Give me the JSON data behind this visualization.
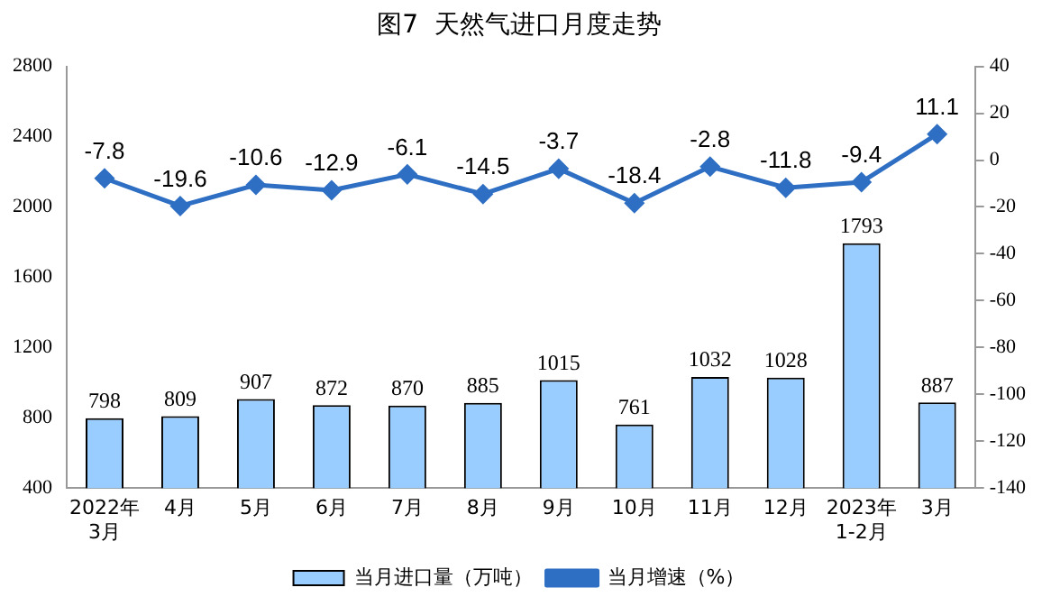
{
  "chart_data": {
    "type": "bar",
    "title": "图7  天然气进口月度走势",
    "categories": [
      "2022年\n3月",
      "4月",
      "5月",
      "6月",
      "7月",
      "8月",
      "9月",
      "10月",
      "11月",
      "12月",
      "2023年\n1-2月",
      "3月"
    ],
    "series": [
      {
        "name": "当月进口量（万吨）",
        "color": "#99ccff",
        "values": [
          798,
          809,
          907,
          872,
          870,
          885,
          1015,
          761,
          1032,
          1028,
          1793,
          887
        ]
      },
      {
        "name": "当月增速（%）",
        "type": "line",
        "axis": "y2",
        "color": "#2e6fc4",
        "marker": "diamond",
        "values": [
          -7.8,
          -19.6,
          -10.6,
          -12.9,
          -6.1,
          -14.5,
          -3.7,
          -18.4,
          -2.8,
          -11.8,
          -9.4,
          11.1
        ]
      }
    ],
    "ylim": [
      400,
      2800
    ],
    "yticks": [
      400,
      800,
      1200,
      1600,
      2000,
      2400,
      2800
    ],
    "y2lim": [
      -140,
      40
    ],
    "y2ticks": [
      -140,
      -120,
      -100,
      -80,
      -60,
      -40,
      -20,
      0,
      20,
      40
    ],
    "grid": false,
    "legend": "bottom",
    "data_labels": true
  }
}
